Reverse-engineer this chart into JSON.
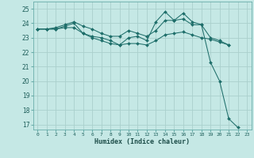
{
  "xlabel": "Humidex (Indice chaleur)",
  "background_color": "#c5e8e5",
  "grid_color": "#aad0cc",
  "line_color": "#1e6e6a",
  "xlim": [
    -0.5,
    23.5
  ],
  "ylim": [
    16.65,
    25.5
  ],
  "yticks": [
    17,
    18,
    19,
    20,
    21,
    22,
    23,
    24,
    25
  ],
  "xticks": [
    0,
    1,
    2,
    3,
    4,
    5,
    6,
    7,
    8,
    9,
    10,
    11,
    12,
    13,
    14,
    15,
    16,
    17,
    18,
    19,
    20,
    21,
    22,
    23
  ],
  "series": [
    {
      "x": [
        0,
        1,
        2,
        3,
        4,
        5,
        6,
        7,
        8,
        9,
        10,
        11,
        12,
        13,
        14,
        15,
        16,
        17,
        18,
        19,
        20,
        21,
        22
      ],
      "y": [
        23.6,
        23.6,
        23.6,
        23.8,
        24.0,
        23.3,
        23.1,
        23.0,
        22.8,
        22.5,
        23.0,
        23.1,
        22.8,
        24.1,
        24.8,
        24.2,
        24.7,
        24.1,
        23.9,
        21.3,
        20.0,
        17.4,
        16.8
      ]
    },
    {
      "x": [
        0,
        1,
        2,
        3,
        4,
        5,
        6,
        7,
        8,
        9,
        10,
        11,
        12,
        13,
        14,
        15,
        16,
        17,
        18,
        19,
        20,
        21
      ],
      "y": [
        23.6,
        23.6,
        23.7,
        23.9,
        24.1,
        23.8,
        23.6,
        23.3,
        23.1,
        23.1,
        23.5,
        23.3,
        23.1,
        23.5,
        24.2,
        24.2,
        24.3,
        23.9,
        23.9,
        23.0,
        22.8,
        22.5
      ]
    },
    {
      "x": [
        0,
        1,
        2,
        3,
        4,
        5,
        6,
        7,
        8,
        9,
        10,
        11,
        12,
        13,
        14,
        15,
        16,
        17,
        18,
        19,
        20,
        21
      ],
      "y": [
        23.6,
        23.6,
        23.6,
        23.7,
        23.7,
        23.3,
        23.0,
        22.8,
        22.6,
        22.5,
        22.6,
        22.6,
        22.5,
        22.8,
        23.2,
        23.3,
        23.4,
        23.2,
        23.0,
        22.9,
        22.7,
        22.5
      ]
    }
  ]
}
